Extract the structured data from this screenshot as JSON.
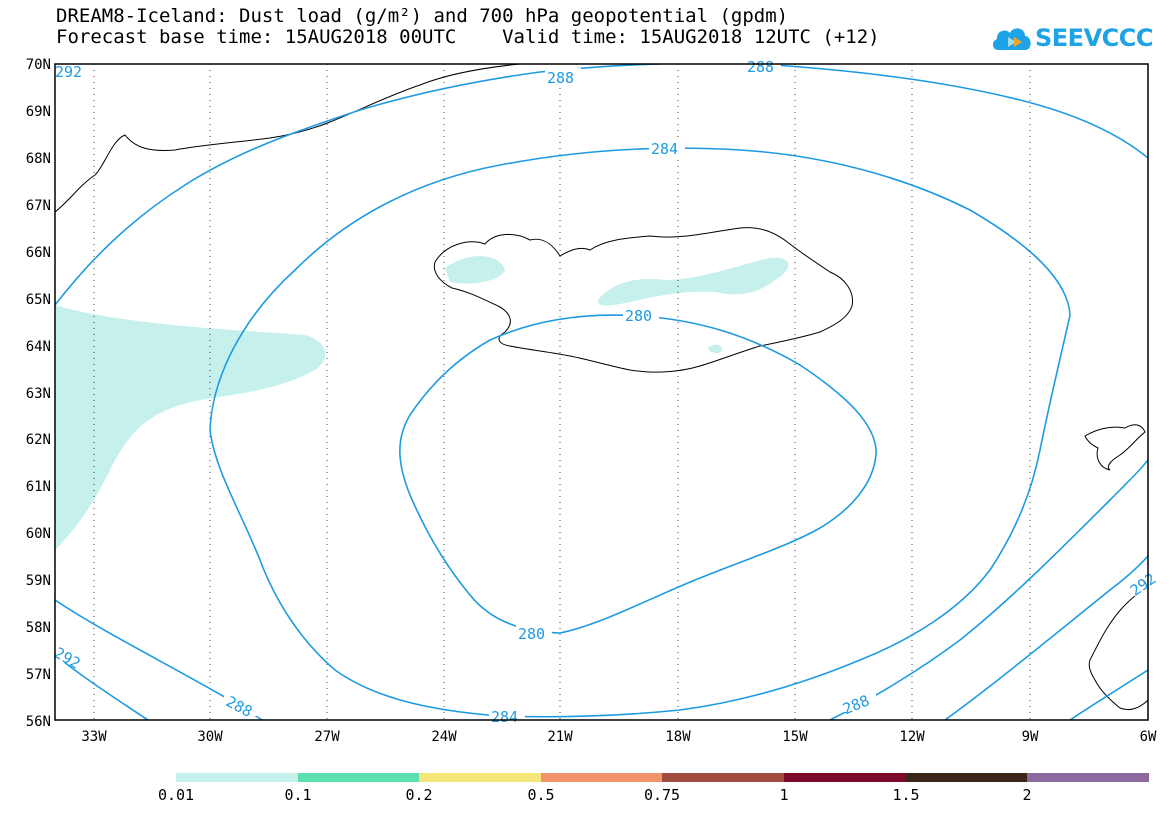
{
  "title": {
    "line1": "DREAM8-Iceland: Dust load (g/m²) and 700 hPa geopotential (gpdm)",
    "line2": "Forecast base time: 15AUG2018 00UTC    Valid time: 15AUG2018 12UTC (+12)"
  },
  "logo": {
    "text": "SEEVCCC",
    "color": "#1ea3e6"
  },
  "map": {
    "lon_range": [
      -34.5,
      -6
    ],
    "lat_range": [
      56,
      70
    ],
    "lon_ticks": [
      "33W",
      "30W",
      "27W",
      "24W",
      "21W",
      "18W",
      "15W",
      "12W",
      "9W",
      "6W"
    ],
    "lat_ticks": [
      "70N",
      "69N",
      "68N",
      "67N",
      "66N",
      "65N",
      "64N",
      "63N",
      "62N",
      "61N",
      "60N",
      "59N",
      "58N",
      "57N",
      "56N"
    ],
    "grid": "dotted",
    "contour_color": "#1e9be0",
    "dust_color": "#c6f0eb",
    "contour_labels": [
      "288",
      "288",
      "284",
      "280",
      "280",
      "288",
      "284",
      "288",
      "292",
      "292",
      "292"
    ]
  },
  "legend": {
    "labels": [
      "0.01",
      "0.1",
      "0.2",
      "0.5",
      "0.75",
      "1",
      "1.5",
      "2"
    ],
    "colors": [
      "#c6f0eb",
      "#5de0b0",
      "#f5e67a",
      "#f0926a",
      "#a04a40",
      "#7d0a2a",
      "#3c2418",
      "#8c6aa0"
    ]
  }
}
